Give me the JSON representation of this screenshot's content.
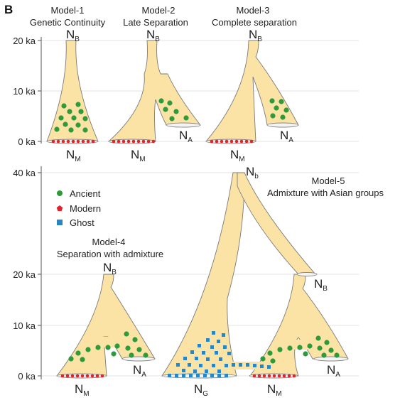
{
  "panel_label": "B",
  "top_row": {
    "axis_ticks": [
      "20 ka",
      "10 ka",
      "0 ka"
    ],
    "models": [
      {
        "title_line1": "Model-1",
        "title_line2": "Genetic Continuity",
        "labels": {
          "nb": "N",
          "nb_sub": "B",
          "nm": "N",
          "nm_sub": "M"
        }
      },
      {
        "title_line1": "Model-2",
        "title_line2": "Late Separation",
        "labels": {
          "nb": "N",
          "nb_sub": "B",
          "nm": "N",
          "nm_sub": "M",
          "na": "N",
          "na_sub": "A"
        }
      },
      {
        "title_line1": "Model-3",
        "title_line2": "Complete separation",
        "labels": {
          "nb": "N",
          "nb_sub": "B",
          "nm": "N",
          "nm_sub": "M",
          "na": "N",
          "na_sub": "A"
        }
      }
    ]
  },
  "bottom_row": {
    "axis_ticks": [
      "40 ka",
      "20 ka",
      "10 ka",
      "0 ka"
    ],
    "legend": [
      {
        "label": "Ancient",
        "shape": "circle",
        "color": "#2e9a3a"
      },
      {
        "label": "Modern",
        "shape": "pentagon",
        "color": "#e0242c"
      },
      {
        "label": "Ghost",
        "shape": "square",
        "color": "#2a86c2"
      }
    ],
    "model4": {
      "title_line1": "Model-4",
      "title_line2": "Separation with admixture",
      "labels": {
        "nb": "N",
        "nb_sub": "B",
        "nm": "N",
        "nm_sub": "M",
        "na": "N",
        "na_sub": "A"
      }
    },
    "model5": {
      "title_line1": "Model-5",
      "title_line2": "Admixture with Asian groups",
      "labels": {
        "nb": "N",
        "nb_sub": "b",
        "nb2": "N",
        "nb2_sub": "B",
        "ng": "N",
        "ng_sub": "G",
        "nm": "N",
        "nm_sub": "M",
        "na": "N",
        "na_sub": "A"
      }
    }
  },
  "colors": {
    "population_fill": "#fbe3a6",
    "ancient": "#2e9a3a",
    "modern": "#e0242c",
    "ghost": "#2a86c2"
  }
}
